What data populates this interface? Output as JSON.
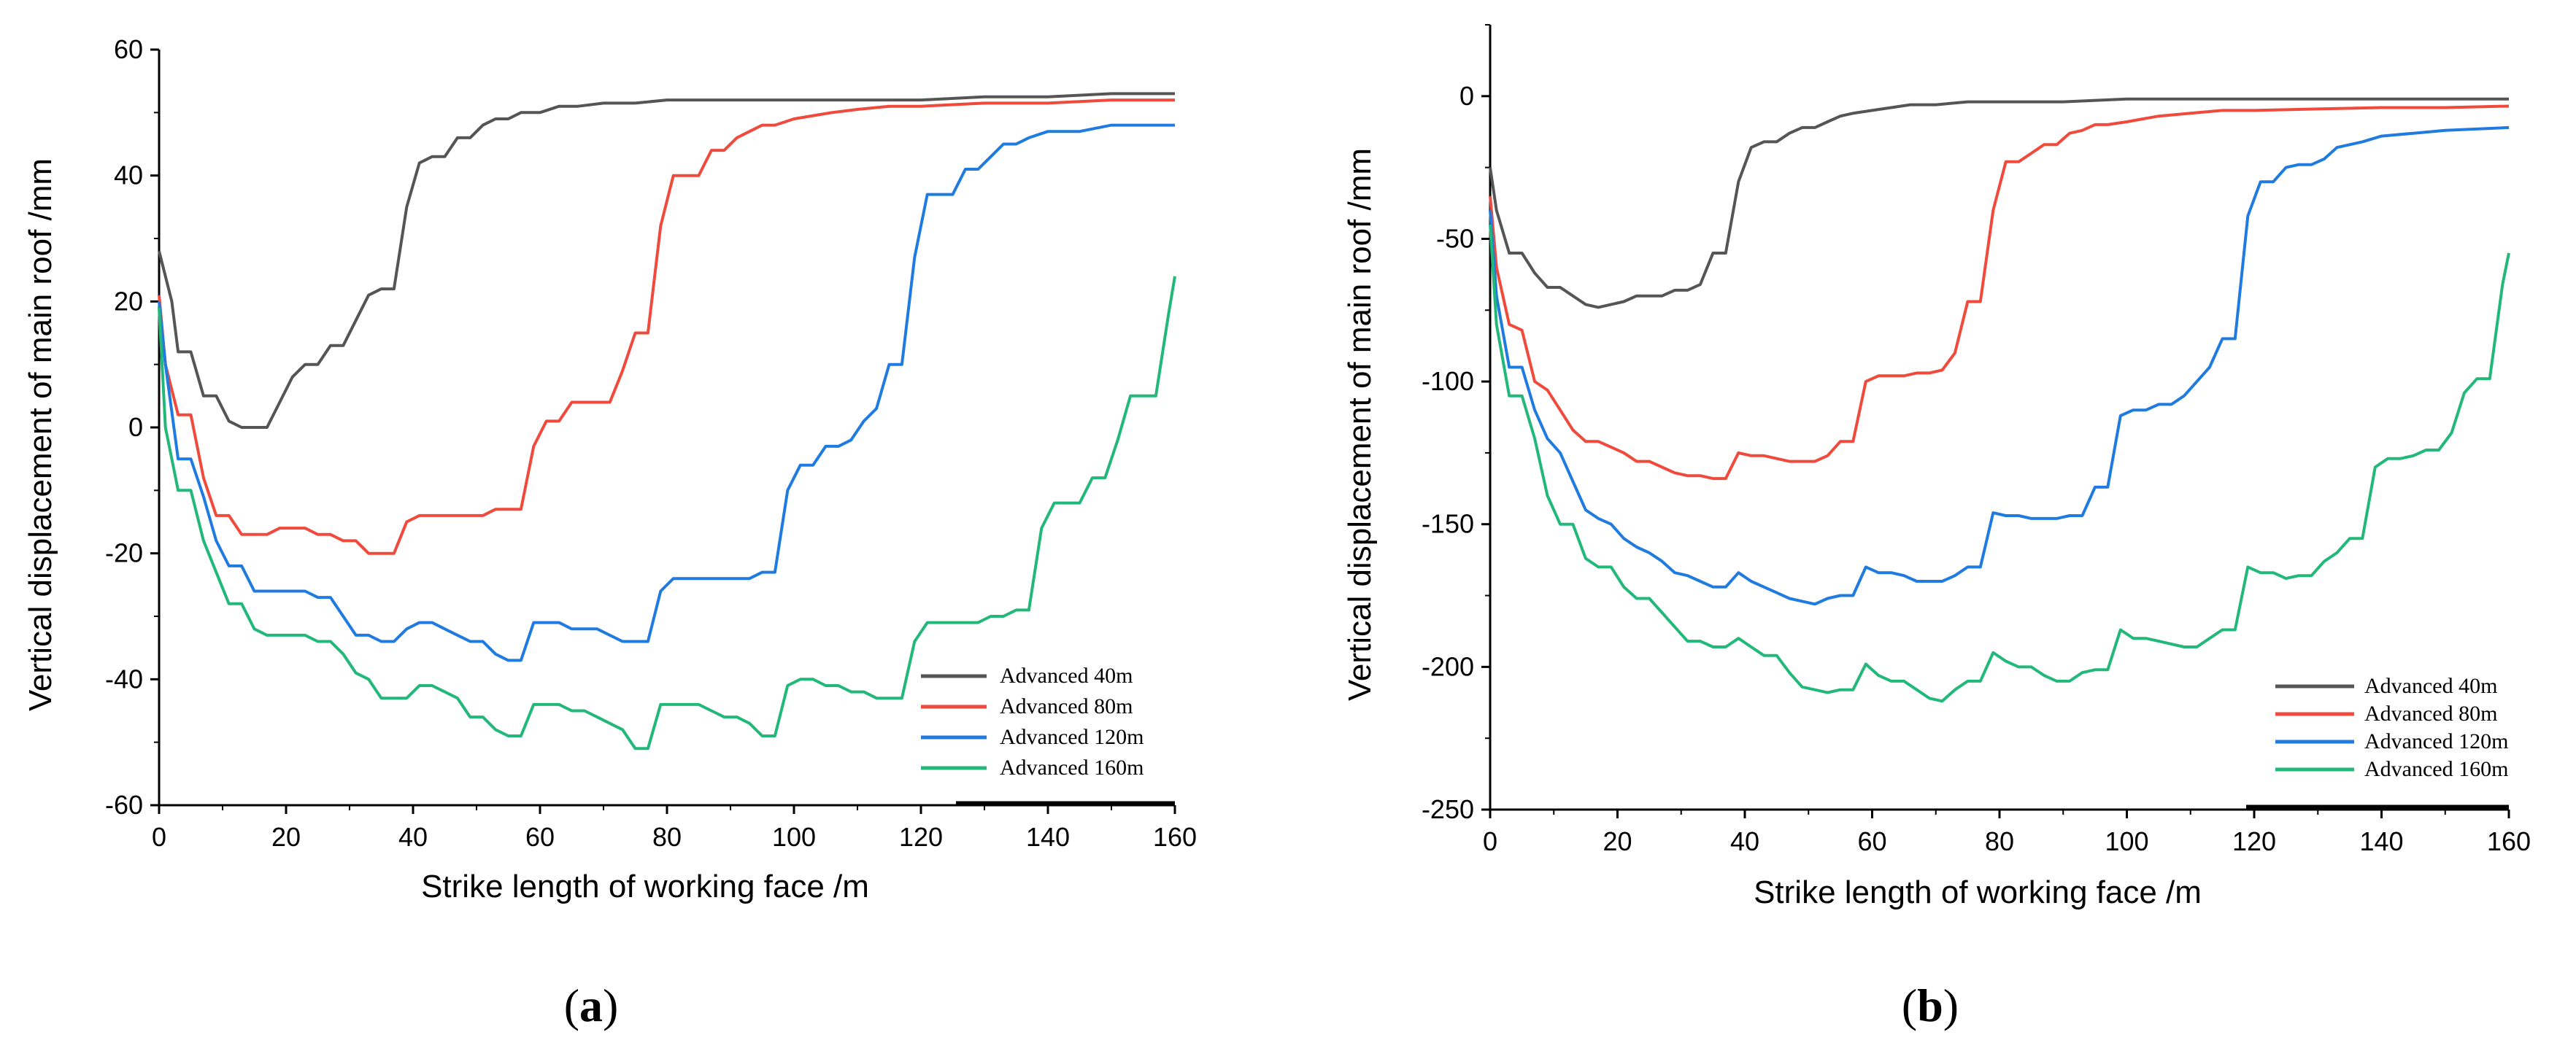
{
  "figure_labels": [
    {
      "open": "(",
      "letter": "a",
      "close": ")"
    },
    {
      "open": "(",
      "letter": "b",
      "close": ")"
    }
  ],
  "colors": {
    "Advanced 40m": "#555555",
    "Advanced 80m": "#f04a3c",
    "Advanced 120m": "#1f7be0",
    "Advanced 160m": "#22b87a"
  },
  "chart_data": [
    {
      "type": "line",
      "panel": "a",
      "title": "",
      "xlabel": "Strike length of working face /m",
      "ylabel": "Vertical displacement of  main roof /mm",
      "xlim": [
        0,
        160
      ],
      "ylim": [
        -60,
        60
      ],
      "xticks": [
        0,
        20,
        40,
        60,
        80,
        100,
        120,
        140,
        160
      ],
      "yticks": [
        -60,
        -40,
        -20,
        0,
        20,
        40,
        60
      ],
      "legend_position": "bottom-right",
      "grid": false,
      "series": [
        {
          "name": "Advanced 40m",
          "x": [
            0,
            2,
            3,
            5,
            7,
            9,
            11,
            13,
            15,
            17,
            19,
            21,
            23,
            25,
            27,
            29,
            31,
            33,
            35,
            37,
            39,
            41,
            43,
            45,
            47,
            49,
            51,
            53,
            55,
            57,
            60,
            63,
            66,
            70,
            75,
            80,
            90,
            100,
            110,
            120,
            130,
            140,
            150,
            160
          ],
          "y": [
            28,
            20,
            12,
            12,
            5,
            5,
            1,
            0,
            0,
            0,
            4,
            8,
            10,
            10,
            13,
            13,
            17,
            21,
            22,
            22,
            35,
            42,
            43,
            43,
            46,
            46,
            48,
            49,
            49,
            50,
            50,
            51,
            51,
            51.5,
            51.5,
            52,
            52,
            52,
            52,
            52,
            52.5,
            52.5,
            53,
            53
          ]
        },
        {
          "name": "Advanced 80m",
          "x": [
            0,
            1,
            3,
            5,
            7,
            9,
            11,
            13,
            15,
            17,
            19,
            21,
            23,
            25,
            27,
            29,
            31,
            33,
            35,
            37,
            39,
            41,
            43,
            45,
            47,
            49,
            51,
            53,
            55,
            57,
            59,
            61,
            63,
            65,
            67,
            69,
            71,
            73,
            75,
            77,
            79,
            81,
            83,
            85,
            87,
            89,
            91,
            93,
            95,
            97,
            100,
            103,
            106,
            110,
            115,
            120,
            130,
            140,
            150,
            160
          ],
          "y": [
            21,
            10,
            2,
            2,
            -8,
            -14,
            -14,
            -17,
            -17,
            -17,
            -16,
            -16,
            -16,
            -17,
            -17,
            -18,
            -18,
            -20,
            -20,
            -20,
            -15,
            -14,
            -14,
            -14,
            -14,
            -14,
            -14,
            -13,
            -13,
            -13,
            -3,
            1,
            1,
            4,
            4,
            4,
            4,
            9,
            15,
            15,
            32,
            40,
            40,
            40,
            44,
            44,
            46,
            47,
            48,
            48,
            49,
            49.5,
            50,
            50.5,
            51,
            51,
            51.5,
            51.5,
            52,
            52
          ]
        },
        {
          "name": "Advanced 120m",
          "x": [
            0,
            1,
            3,
            5,
            7,
            9,
            11,
            13,
            15,
            17,
            19,
            21,
            23,
            25,
            27,
            29,
            31,
            33,
            35,
            37,
            39,
            41,
            43,
            45,
            47,
            49,
            51,
            53,
            55,
            57,
            59,
            61,
            63,
            65,
            67,
            69,
            71,
            73,
            75,
            77,
            79,
            81,
            83,
            85,
            87,
            89,
            91,
            93,
            95,
            97,
            99,
            101,
            103,
            105,
            107,
            109,
            111,
            113,
            115,
            117,
            119,
            121,
            123,
            125,
            127,
            129,
            131,
            133,
            135,
            137,
            140,
            145,
            150,
            160
          ],
          "y": [
            20,
            10,
            -5,
            -5,
            -11,
            -18,
            -22,
            -22,
            -26,
            -26,
            -26,
            -26,
            -26,
            -27,
            -27,
            -30,
            -33,
            -33,
            -34,
            -34,
            -32,
            -31,
            -31,
            -32,
            -33,
            -34,
            -34,
            -36,
            -37,
            -37,
            -31,
            -31,
            -31,
            -32,
            -32,
            -32,
            -33,
            -34,
            -34,
            -34,
            -26,
            -24,
            -24,
            -24,
            -24,
            -24,
            -24,
            -24,
            -23,
            -23,
            -10,
            -6,
            -6,
            -3,
            -3,
            -2,
            1,
            3,
            10,
            10,
            27,
            37,
            37,
            37,
            41,
            41,
            43,
            45,
            45,
            46,
            47,
            47,
            48,
            48
          ]
        },
        {
          "name": "Advanced 160m",
          "x": [
            0,
            1,
            3,
            5,
            7,
            9,
            11,
            13,
            15,
            17,
            19,
            21,
            23,
            25,
            27,
            29,
            31,
            33,
            35,
            37,
            39,
            41,
            43,
            45,
            47,
            49,
            51,
            53,
            55,
            57,
            59,
            61,
            63,
            65,
            67,
            69,
            71,
            73,
            75,
            77,
            79,
            81,
            83,
            85,
            87,
            89,
            91,
            93,
            95,
            97,
            99,
            101,
            103,
            105,
            107,
            109,
            111,
            113,
            115,
            117,
            119,
            121,
            123,
            125,
            127,
            129,
            131,
            133,
            135,
            137,
            139,
            141,
            143,
            145,
            147,
            149,
            151,
            153,
            155,
            157,
            159,
            160
          ],
          "y": [
            19,
            0,
            -10,
            -10,
            -18,
            -23,
            -28,
            -28,
            -32,
            -33,
            -33,
            -33,
            -33,
            -34,
            -34,
            -36,
            -39,
            -40,
            -43,
            -43,
            -43,
            -41,
            -41,
            -42,
            -43,
            -46,
            -46,
            -48,
            -49,
            -49,
            -44,
            -44,
            -44,
            -45,
            -45,
            -46,
            -47,
            -48,
            -51,
            -51,
            -44,
            -44,
            -44,
            -44,
            -45,
            -46,
            -46,
            -47,
            -49,
            -49,
            -41,
            -40,
            -40,
            -41,
            -41,
            -42,
            -42,
            -43,
            -43,
            -43,
            -34,
            -31,
            -31,
            -31,
            -31,
            -31,
            -30,
            -30,
            -29,
            -29,
            -16,
            -12,
            -12,
            -12,
            -8,
            -8,
            -2,
            5,
            5,
            5,
            18,
            24
          ]
        }
      ]
    },
    {
      "type": "line",
      "panel": "b",
      "title": "",
      "xlabel": "Strike length of working face /m",
      "ylabel": "Vertical displacement of  main roof /mm",
      "xlim": [
        0,
        160
      ],
      "ylim": [
        -250,
        25
      ],
      "xticks": [
        0,
        20,
        40,
        60,
        80,
        100,
        120,
        140,
        160
      ],
      "yticks": [
        -250,
        -200,
        -150,
        -100,
        -50,
        0
      ],
      "legend_position": "bottom-right",
      "grid": false,
      "series": [
        {
          "name": "Advanced 40m",
          "x": [
            0,
            1,
            3,
            5,
            7,
            9,
            11,
            13,
            15,
            17,
            19,
            21,
            23,
            25,
            27,
            29,
            31,
            33,
            35,
            37,
            39,
            41,
            43,
            45,
            47,
            49,
            51,
            53,
            55,
            57,
            60,
            63,
            66,
            70,
            75,
            80,
            90,
            100,
            110,
            120,
            130,
            140,
            150,
            160
          ],
          "y": [
            -25,
            -40,
            -55,
            -55,
            -62,
            -67,
            -67,
            -70,
            -73,
            -74,
            -73,
            -72,
            -70,
            -70,
            -70,
            -68,
            -68,
            -66,
            -55,
            -55,
            -30,
            -18,
            -16,
            -16,
            -13,
            -11,
            -11,
            -9,
            -7,
            -6,
            -5,
            -4,
            -3,
            -3,
            -2,
            -2,
            -2,
            -1,
            -1,
            -1,
            -1,
            -1,
            -1,
            -1
          ]
        },
        {
          "name": "Advanced 80m",
          "x": [
            0,
            1,
            3,
            5,
            7,
            9,
            11,
            13,
            15,
            17,
            19,
            21,
            23,
            25,
            27,
            29,
            31,
            33,
            35,
            37,
            39,
            41,
            43,
            45,
            47,
            49,
            51,
            53,
            55,
            57,
            59,
            61,
            63,
            65,
            67,
            69,
            71,
            73,
            75,
            77,
            79,
            81,
            83,
            85,
            87,
            89,
            91,
            93,
            95,
            97,
            100,
            105,
            110,
            115,
            120,
            130,
            140,
            150,
            160
          ],
          "y": [
            -35,
            -60,
            -80,
            -82,
            -100,
            -103,
            -110,
            -117,
            -121,
            -121,
            -123,
            -125,
            -128,
            -128,
            -130,
            -132,
            -133,
            -133,
            -134,
            -134,
            -125,
            -126,
            -126,
            -127,
            -128,
            -128,
            -128,
            -126,
            -121,
            -121,
            -100,
            -98,
            -98,
            -98,
            -97,
            -97,
            -96,
            -90,
            -72,
            -72,
            -40,
            -23,
            -23,
            -20,
            -17,
            -17,
            -13,
            -12,
            -10,
            -10,
            -9,
            -7,
            -6,
            -5,
            -5,
            -4.5,
            -4,
            -4,
            -3.5
          ]
        },
        {
          "name": "Advanced 120m",
          "x": [
            0,
            1,
            3,
            5,
            7,
            9,
            11,
            13,
            15,
            17,
            19,
            21,
            23,
            25,
            27,
            29,
            31,
            33,
            35,
            37,
            39,
            41,
            43,
            45,
            47,
            49,
            51,
            53,
            55,
            57,
            59,
            61,
            63,
            65,
            67,
            69,
            71,
            73,
            75,
            77,
            79,
            81,
            83,
            85,
            87,
            89,
            91,
            93,
            95,
            97,
            99,
            101,
            103,
            105,
            107,
            109,
            111,
            113,
            115,
            117,
            119,
            121,
            123,
            125,
            127,
            129,
            131,
            133,
            135,
            137,
            140,
            145,
            150,
            160
          ],
          "y": [
            -40,
            -70,
            -95,
            -95,
            -110,
            -120,
            -125,
            -135,
            -145,
            -148,
            -150,
            -155,
            -158,
            -160,
            -163,
            -167,
            -168,
            -170,
            -172,
            -172,
            -167,
            -170,
            -172,
            -174,
            -176,
            -177,
            -178,
            -176,
            -175,
            -175,
            -165,
            -167,
            -167,
            -168,
            -170,
            -170,
            -170,
            -168,
            -165,
            -165,
            -146,
            -147,
            -147,
            -148,
            -148,
            -148,
            -147,
            -147,
            -137,
            -137,
            -112,
            -110,
            -110,
            -108,
            -108,
            -105,
            -100,
            -95,
            -85,
            -85,
            -42,
            -30,
            -30,
            -25,
            -24,
            -24,
            -22,
            -18,
            -17,
            -16,
            -14,
            -13,
            -12,
            -11
          ]
        },
        {
          "name": "Advanced 160m",
          "x": [
            0,
            1,
            3,
            5,
            7,
            9,
            11,
            13,
            15,
            17,
            19,
            21,
            23,
            25,
            27,
            29,
            31,
            33,
            35,
            37,
            39,
            41,
            43,
            45,
            47,
            49,
            51,
            53,
            55,
            57,
            59,
            61,
            63,
            65,
            67,
            69,
            71,
            73,
            75,
            77,
            79,
            81,
            83,
            85,
            87,
            89,
            91,
            93,
            95,
            97,
            99,
            101,
            103,
            105,
            107,
            109,
            111,
            113,
            115,
            117,
            119,
            121,
            123,
            125,
            127,
            129,
            131,
            133,
            135,
            137,
            139,
            141,
            143,
            145,
            147,
            149,
            151,
            153,
            155,
            157,
            159,
            160
          ],
          "y": [
            -45,
            -80,
            -105,
            -105,
            -120,
            -140,
            -150,
            -150,
            -162,
            -165,
            -165,
            -172,
            -176,
            -176,
            -181,
            -186,
            -191,
            -191,
            -193,
            -193,
            -190,
            -193,
            -196,
            -196,
            -202,
            -207,
            -208,
            -209,
            -208,
            -208,
            -199,
            -203,
            -205,
            -205,
            -208,
            -211,
            -212,
            -208,
            -205,
            -205,
            -195,
            -198,
            -200,
            -200,
            -203,
            -205,
            -205,
            -202,
            -201,
            -201,
            -187,
            -190,
            -190,
            -191,
            -192,
            -193,
            -193,
            -190,
            -187,
            -187,
            -165,
            -167,
            -167,
            -169,
            -168,
            -168,
            -163,
            -160,
            -155,
            -155,
            -130,
            -127,
            -127,
            -126,
            -124,
            -124,
            -118,
            -104,
            -99,
            -99,
            -66,
            -55
          ]
        }
      ]
    }
  ]
}
